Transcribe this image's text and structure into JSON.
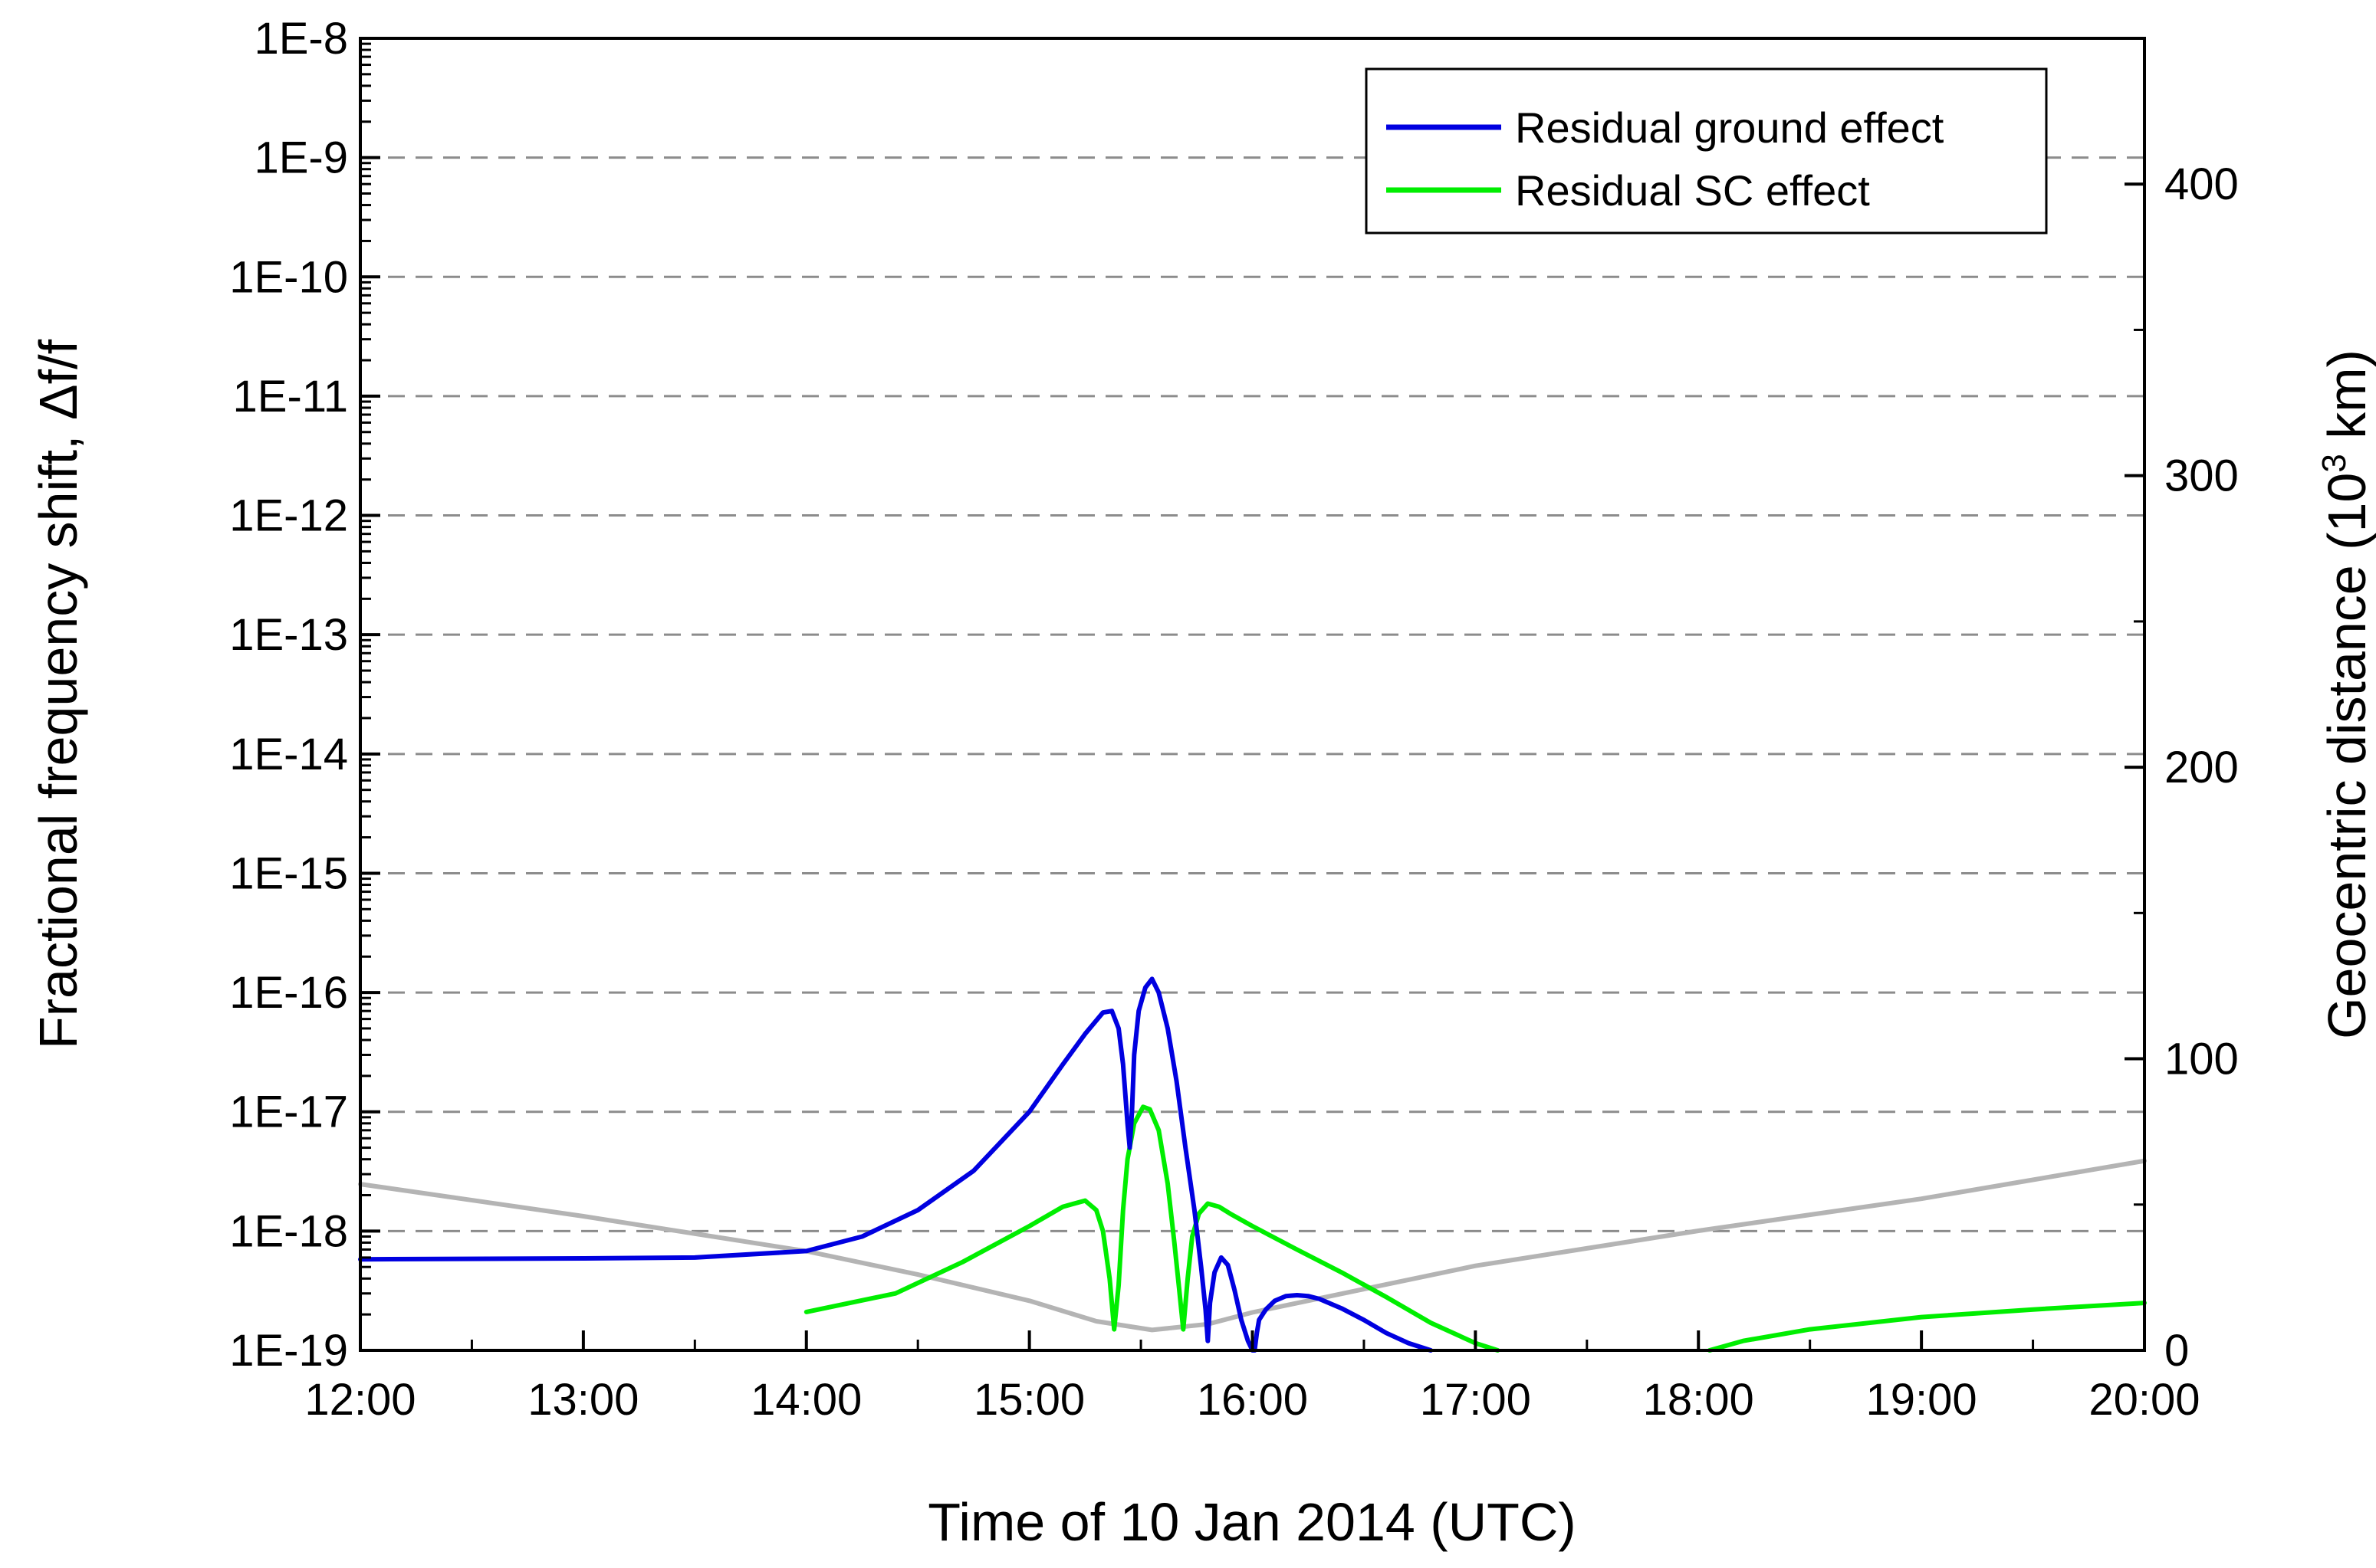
{
  "chart_data": {
    "type": "line",
    "title": "",
    "xlabel": "Time of 10 Jan 2014 (UTC)",
    "ylabel": "Fractional frequency shift, Δf/f",
    "y2label": {
      "prefix": "Geocentric distance (10",
      "sup": "3",
      "suffix": " km)"
    },
    "x_ticks": [
      "12:00",
      "13:00",
      "14:00",
      "15:00",
      "16:00",
      "17:00",
      "18:00",
      "19:00",
      "20:00"
    ],
    "y_ticks": [
      "1E-19",
      "1E-18",
      "1E-17",
      "1E-16",
      "1E-15",
      "1E-14",
      "1E-13",
      "1E-12",
      "1E-11",
      "1E-10",
      "1E-9",
      "1E-8"
    ],
    "y2_ticks": [
      "0",
      "100",
      "200",
      "300",
      "400"
    ],
    "xlim": [
      12,
      20
    ],
    "ylim_log10": [
      -19,
      -8
    ],
    "y2lim": [
      0,
      450
    ],
    "yscale": "log",
    "grid": "horizontal dashed at major y ticks",
    "legend_position": "top-right",
    "series": [
      {
        "name": "Residual ground effect",
        "color": "#0000e0",
        "axis": "left",
        "x": [
          12.0,
          13.0,
          13.5,
          14.0,
          14.25,
          14.5,
          14.75,
          15.0,
          15.15,
          15.25,
          15.33,
          15.37,
          15.4,
          15.42,
          15.44,
          15.45,
          15.46,
          15.47,
          15.49,
          15.52,
          15.55,
          15.58,
          15.62,
          15.66,
          15.7,
          15.74,
          15.77,
          15.79,
          15.8,
          15.81,
          15.83,
          15.86,
          15.89,
          15.92,
          15.95,
          15.98,
          16.0,
          16.01,
          16.02,
          16.03,
          16.06,
          16.1,
          16.15,
          16.2,
          16.25,
          16.3,
          16.4,
          16.5,
          16.6,
          16.7,
          16.8
        ],
        "y": [
          5.8e-19,
          5.9e-19,
          6e-19,
          6.8e-19,
          9e-19,
          1.5e-18,
          3.2e-18,
          1e-17,
          2.5e-17,
          4.5e-17,
          6.8e-17,
          7e-17,
          5e-17,
          2.5e-17,
          8e-18,
          5e-18,
          1e-17,
          3e-17,
          7e-17,
          1.1e-16,
          1.3e-16,
          1e-16,
          5e-17,
          1.8e-17,
          5e-18,
          1.5e-18,
          5e-19,
          2.2e-19,
          1.2e-19,
          2.5e-19,
          4.5e-19,
          6e-19,
          5.2e-19,
          3.2e-19,
          1.8e-19,
          1.2e-19,
          1e-19,
          1e-19,
          1.4e-19,
          1.8e-19,
          2.2e-19,
          2.6e-19,
          2.85e-19,
          2.9e-19,
          2.85e-19,
          2.7e-19,
          2.25e-19,
          1.8e-19,
          1.4e-19,
          1.15e-19,
          1e-19
        ]
      },
      {
        "name": "Residual SC effect",
        "color": "#00ee00",
        "axis": "left",
        "x": [
          12.0,
          13.0,
          14.0,
          14.4,
          14.7,
          15.0,
          15.15,
          15.25,
          15.3,
          15.33,
          15.36,
          15.38,
          15.4,
          15.42,
          15.44,
          15.47,
          15.51,
          15.54,
          15.58,
          15.62,
          15.65,
          15.67,
          15.69,
          15.71,
          15.73,
          15.76,
          15.8,
          15.85,
          15.9,
          16.0,
          16.2,
          16.4,
          16.6,
          16.8,
          17.0,
          17.1,
          18.05,
          18.2,
          18.5,
          19.0,
          19.5,
          20.0
        ],
        "y": [
          2.3e-19,
          2e-19,
          2.1e-19,
          3e-19,
          5.5e-19,
          1.1e-18,
          1.6e-18,
          1.8e-18,
          1.5e-18,
          1e-18,
          4e-19,
          1.5e-19,
          3.5e-19,
          1.5e-18,
          4e-18,
          8e-18,
          1.1e-17,
          1.05e-17,
          7e-18,
          2.5e-18,
          8e-19,
          3.5e-19,
          1.5e-19,
          4e-19,
          9e-19,
          1.4e-18,
          1.7e-18,
          1.6e-18,
          1.4e-18,
          1.1e-18,
          7e-19,
          4.5e-19,
          2.8e-19,
          1.7e-19,
          1.15e-19,
          1e-19,
          1e-19,
          1.2e-19,
          1.5e-19,
          1.9e-19,
          2.2e-19,
          2.5e-19
        ]
      },
      {
        "name": "",
        "color": "#b4b4b4",
        "axis": "right",
        "x": [
          12.0,
          13.0,
          14.0,
          14.5,
          15.0,
          15.3,
          15.55,
          15.8,
          16.0,
          16.5,
          17.0,
          18.0,
          19.0,
          20.0
        ],
        "y": [
          57,
          46,
          34,
          26,
          17,
          10,
          7,
          9,
          13,
          21,
          29,
          41,
          52,
          65
        ]
      }
    ]
  }
}
